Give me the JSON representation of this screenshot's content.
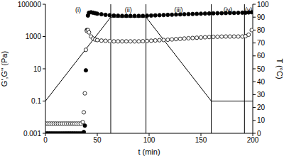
{
  "chart_data": {
    "type": "scatter",
    "log": "y",
    "grid": false,
    "xlabel": "t (min)",
    "ylabel": "G',G'' (Pa)",
    "y2label": "T (°C)",
    "xlim": [
      0,
      200
    ],
    "xticks": [
      0,
      50,
      100,
      150,
      200
    ],
    "ylim": [
      0.001,
      100000
    ],
    "yticks": [
      0.001,
      0.1,
      10,
      1000,
      100000
    ],
    "y2lim": [
      0,
      100
    ],
    "y2ticks": [
      0,
      10,
      20,
      30,
      40,
      50,
      60,
      70,
      80,
      90,
      100
    ],
    "phases": [
      {
        "label": "(i)",
        "start": 0,
        "end": 63
      },
      {
        "label": "(ii)",
        "start": 63,
        "end": 97
      },
      {
        "label": "(iii)",
        "start": 97,
        "end": 160
      },
      {
        "label": "(iv)",
        "start": 160,
        "end": 192
      },
      {
        "label": "(v)",
        "start": 192,
        "end": 200
      }
    ],
    "series": [
      {
        "name": "G'",
        "type": "scatter",
        "marker": "filled circle",
        "color": "#000000",
        "x": [
          0,
          2,
          4,
          6,
          8,
          10,
          12,
          14,
          16,
          18,
          20,
          22,
          24,
          26,
          28,
          30,
          32,
          34,
          36,
          37,
          38,
          39,
          40,
          41,
          42,
          44,
          46,
          48,
          50,
          54,
          58,
          62,
          66,
          70,
          74,
          78,
          82,
          86,
          90,
          94,
          98,
          102,
          106,
          110,
          114,
          118,
          122,
          126,
          130,
          134,
          138,
          142,
          146,
          150,
          154,
          158,
          162,
          166,
          170,
          174,
          178,
          182,
          186,
          190,
          193,
          196,
          199
        ],
        "values": [
          0.001,
          0.001,
          0.001,
          0.001,
          0.001,
          0.001,
          0.001,
          0.001,
          0.001,
          0.001,
          0.001,
          0.001,
          0.001,
          0.001,
          0.001,
          0.001,
          0.001,
          0.001,
          0.001,
          0.0012,
          0.003,
          8,
          2500,
          20000,
          30000,
          32000,
          30000,
          28000,
          26000,
          24000,
          22000,
          21000,
          20000,
          19500,
          19000,
          19000,
          19000,
          19000,
          19000,
          19000,
          19500,
          20000,
          20500,
          21000,
          21500,
          22000,
          22500,
          23000,
          23500,
          24000,
          24500,
          25000,
          25500,
          26000,
          26500,
          27000,
          27500,
          28000,
          28000,
          28500,
          29000,
          29000,
          29500,
          30000,
          30000,
          31000,
          32000
        ]
      },
      {
        "name": "G''",
        "type": "scatter",
        "marker": "open circle",
        "color": "#000000",
        "x": [
          0,
          2,
          4,
          6,
          8,
          10,
          12,
          14,
          16,
          18,
          20,
          22,
          24,
          26,
          28,
          30,
          32,
          34,
          36,
          37,
          38,
          39,
          40,
          41,
          42,
          44,
          46,
          48,
          50,
          54,
          58,
          62,
          66,
          70,
          74,
          78,
          82,
          86,
          90,
          94,
          98,
          102,
          106,
          110,
          114,
          118,
          122,
          126,
          130,
          134,
          138,
          142,
          146,
          150,
          154,
          158,
          162,
          166,
          170,
          174,
          178,
          182,
          186,
          190,
          193,
          196,
          199
        ],
        "values": [
          0.004,
          0.004,
          0.004,
          0.004,
          0.004,
          0.004,
          0.004,
          0.004,
          0.004,
          0.004,
          0.004,
          0.004,
          0.004,
          0.004,
          0.004,
          0.004,
          0.004,
          0.004,
          0.005,
          0.02,
          0.3,
          150,
          2200,
          2500,
          1800,
          1000,
          750,
          650,
          600,
          560,
          540,
          520,
          500,
          500,
          500,
          500,
          500,
          500,
          500,
          510,
          530,
          550,
          570,
          590,
          610,
          630,
          660,
          690,
          720,
          750,
          780,
          810,
          840,
          870,
          900,
          930,
          950,
          970,
          990,
          1000,
          1000,
          1000,
          1000,
          1000,
          1050,
          1300,
          2500
        ]
      },
      {
        "name": "T",
        "type": "line",
        "axis": "y2",
        "marker": "none",
        "line_style": "solid",
        "color": "#000000",
        "x": [
          0,
          63,
          97,
          160,
          200
        ],
        "values": [
          25,
          90,
          90,
          25,
          25
        ]
      }
    ]
  }
}
